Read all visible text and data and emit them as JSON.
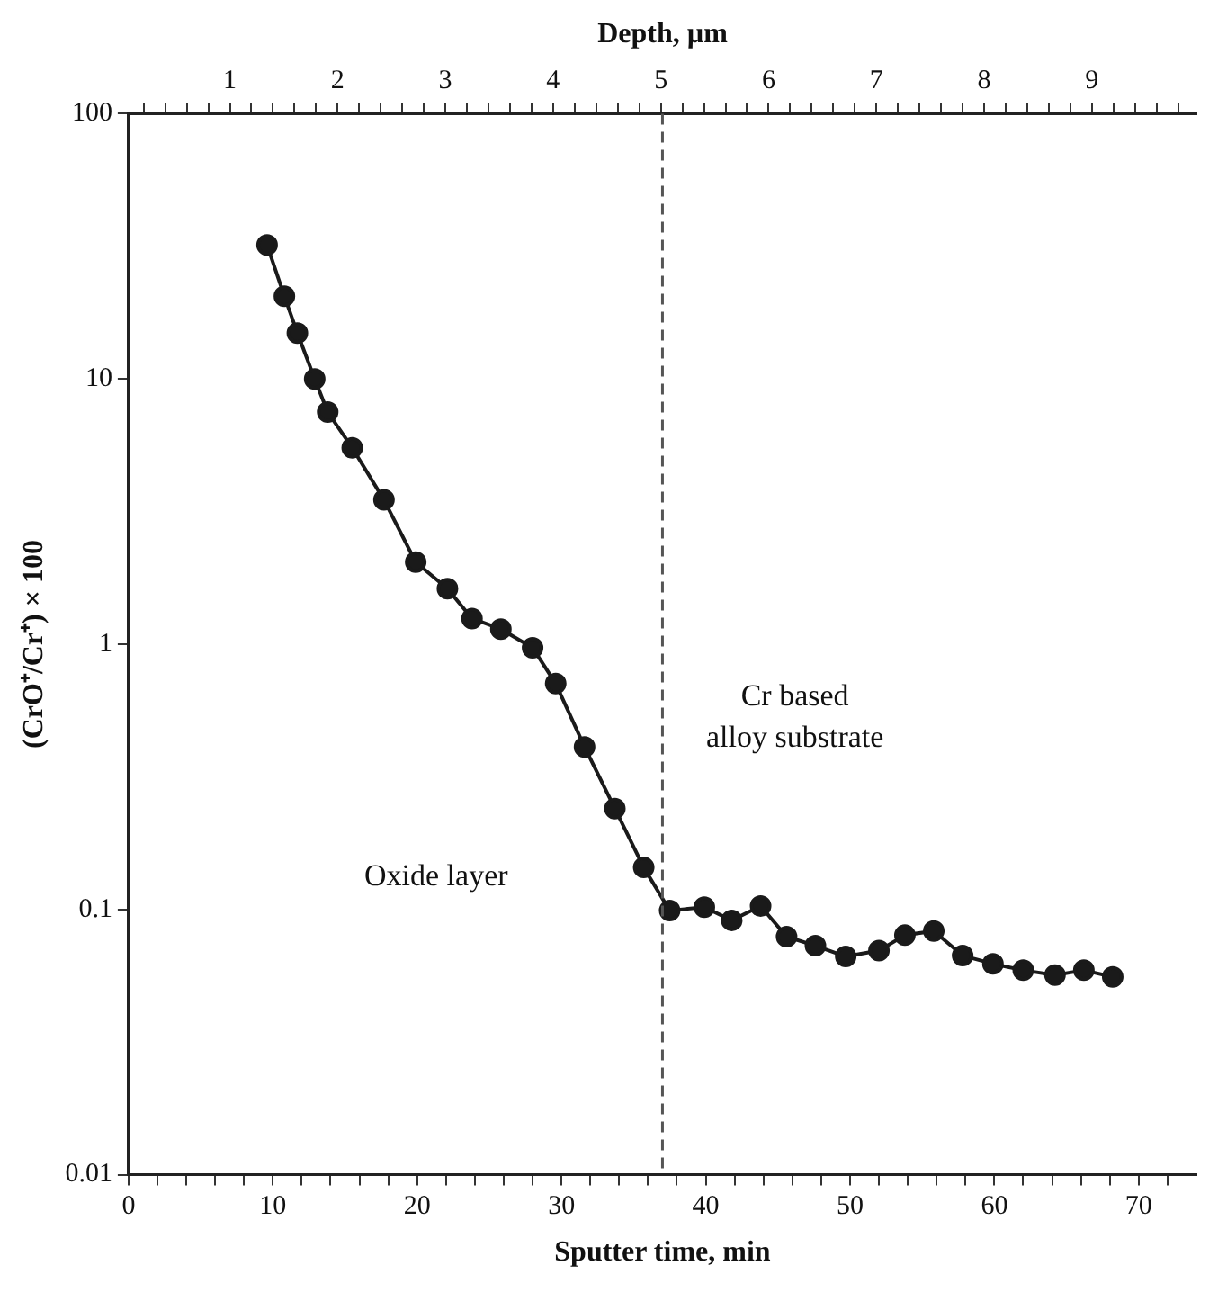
{
  "chart_data": {
    "type": "line",
    "xlabel": "Sputter time, min",
    "x2label": "Depth, µm",
    "ylabel": "(CrO⁺/Cr⁺) × 100",
    "x": [
      9.6,
      10.8,
      11.7,
      12.9,
      13.8,
      15.5,
      17.7,
      19.9,
      22.1,
      23.8,
      25.8,
      28,
      29.6,
      31.6,
      33.7,
      35.7,
      37.5,
      39.9,
      41.8,
      43.8,
      45.6,
      47.6,
      49.7,
      52,
      53.8,
      55.8,
      57.8,
      59.9,
      62,
      64.2,
      66.2,
      68.2
    ],
    "series": [
      {
        "color": "#1a1a1a",
        "values": [
          32,
          20.5,
          14.9,
          10,
          7.5,
          5.5,
          3.5,
          2.04,
          1.62,
          1.25,
          1.14,
          0.97,
          0.71,
          0.41,
          0.24,
          0.144,
          0.099,
          0.102,
          0.091,
          0.103,
          0.079,
          0.073,
          0.0665,
          0.07,
          0.08,
          0.083,
          0.067,
          0.0624,
          0.059,
          0.0566,
          0.059,
          0.0557
        ]
      }
    ],
    "log": "y",
    "ylim": [
      0.01,
      100
    ],
    "yticks": [
      {
        "value": 0.01,
        "label": "0.01"
      },
      {
        "value": 0.1,
        "label": "0.1"
      },
      1,
      10,
      100
    ],
    "xlim": [
      0,
      74
    ],
    "xticks": [
      0,
      {
        "value": 2,
        "label": null
      },
      {
        "value": 4,
        "label": null
      },
      {
        "value": 6,
        "label": null
      },
      {
        "value": 8,
        "label": null
      },
      10,
      {
        "value": 12,
        "label": null
      },
      {
        "value": 14,
        "label": null
      },
      {
        "value": 16,
        "label": null
      },
      {
        "value": 18,
        "label": null
      },
      20,
      {
        "value": 22,
        "label": null
      },
      {
        "value": 24,
        "label": null
      },
      {
        "value": 26,
        "label": null
      },
      {
        "value": 28,
        "label": null
      },
      30,
      {
        "value": 32,
        "label": null
      },
      {
        "value": 34,
        "label": null
      },
      {
        "value": 36,
        "label": null
      },
      {
        "value": 38,
        "label": null
      },
      40,
      {
        "value": 42,
        "label": null
      },
      {
        "value": 44,
        "label": null
      },
      {
        "value": 46,
        "label": null
      },
      {
        "value": 48,
        "label": null
      },
      50,
      {
        "value": 52,
        "label": null
      },
      {
        "value": 54,
        "label": null
      },
      {
        "value": 56,
        "label": null
      },
      {
        "value": 58,
        "label": null
      },
      60,
      {
        "value": 62,
        "label": null
      },
      {
        "value": 64,
        "label": null
      },
      {
        "value": 66,
        "label": null
      },
      {
        "value": 68,
        "label": null
      },
      70,
      {
        "value": 72,
        "label": null
      }
    ],
    "x2lim": [
      0.06,
      9.97
    ],
    "x2ticks": [
      {
        "value": 0.2,
        "label": null
      },
      {
        "value": 0.4,
        "label": null
      },
      {
        "value": 0.6,
        "label": null
      },
      {
        "value": 0.8,
        "label": null
      },
      1,
      {
        "value": 1.2,
        "label": null
      },
      {
        "value": 1.4,
        "label": null
      },
      {
        "value": 1.6,
        "label": null
      },
      {
        "value": 1.8,
        "label": null
      },
      2,
      {
        "value": 2.2,
        "label": null
      },
      {
        "value": 2.4,
        "label": null
      },
      {
        "value": 2.6,
        "label": null
      },
      {
        "value": 2.8,
        "label": null
      },
      3,
      {
        "value": 3.2,
        "label": null
      },
      {
        "value": 3.4,
        "label": null
      },
      {
        "value": 3.6,
        "label": null
      },
      {
        "value": 3.8,
        "label": null
      },
      4,
      {
        "value": 4.2,
        "label": null
      },
      {
        "value": 4.4,
        "label": null
      },
      {
        "value": 4.6,
        "label": null
      },
      {
        "value": 4.8,
        "label": null
      },
      5,
      {
        "value": 5.2,
        "label": null
      },
      {
        "value": 5.4,
        "label": null
      },
      {
        "value": 5.6,
        "label": null
      },
      {
        "value": 5.8,
        "label": null
      },
      6,
      {
        "value": 6.2,
        "label": null
      },
      {
        "value": 6.4,
        "label": null
      },
      {
        "value": 6.6,
        "label": null
      },
      {
        "value": 6.8,
        "label": null
      },
      7,
      {
        "value": 7.2,
        "label": null
      },
      {
        "value": 7.4,
        "label": null
      },
      {
        "value": 7.6,
        "label": null
      },
      {
        "value": 7.8,
        "label": null
      },
      8,
      {
        "value": 8.2,
        "label": null
      },
      {
        "value": 8.4,
        "label": null
      },
      {
        "value": 8.6,
        "label": null
      },
      {
        "value": 8.8,
        "label": null
      },
      9,
      {
        "value": 9.2,
        "label": null
      },
      {
        "value": 9.4,
        "label": null
      },
      {
        "value": 9.6,
        "label": null
      },
      {
        "value": 9.8,
        "label": null
      }
    ],
    "ref_lines": [
      {
        "axis": "x",
        "value": 37,
        "color": "#555555",
        "line_style": "dashed"
      }
    ],
    "annotations": [
      "Oxide layer",
      "Cr based\nalloy substrate"
    ],
    "marker": "circle",
    "line_style": "solid",
    "grid": false,
    "legend": false
  }
}
